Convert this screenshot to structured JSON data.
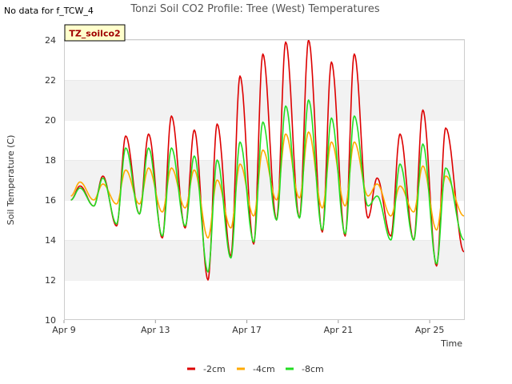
{
  "header": {
    "title": "Tonzi Soil CO2 Profile: Tree (West) Temperatures",
    "no_data": "No data for f_TCW_4",
    "badge": "TZ_soilco2"
  },
  "chart_data": {
    "type": "line",
    "title": "Tonzi Soil CO2 Profile: Tree (West) Temperatures",
    "xlabel": "Time",
    "ylabel": "Soil Temperature (C)",
    "xlim": [
      9,
      26.5
    ],
    "ylim": [
      10,
      24
    ],
    "x_ticks": [
      {
        "value": 9,
        "label": "Apr 9"
      },
      {
        "value": 13,
        "label": "Apr 13"
      },
      {
        "value": 17,
        "label": "Apr 17"
      },
      {
        "value": 21,
        "label": "Apr 21"
      },
      {
        "value": 25,
        "label": "Apr 25"
      }
    ],
    "y_ticks": [
      10,
      12,
      14,
      16,
      18,
      20,
      22,
      24
    ],
    "grid": "horizontal bands",
    "legend_position": "bottom",
    "series": [
      {
        "name": "-2cm",
        "color": "#dd0000",
        "daily": [
          {
            "day": 9,
            "min": 16.0,
            "max": 16.7
          },
          {
            "day": 10,
            "min": 15.7,
            "max": 17.2
          },
          {
            "day": 11,
            "min": 14.7,
            "max": 19.2
          },
          {
            "day": 12,
            "min": 15.3,
            "max": 19.3
          },
          {
            "day": 13,
            "min": 14.1,
            "max": 20.2
          },
          {
            "day": 14,
            "min": 14.6,
            "max": 19.5
          },
          {
            "day": 15,
            "min": 12.0,
            "max": 19.8
          },
          {
            "day": 16,
            "min": 13.2,
            "max": 22.2
          },
          {
            "day": 17,
            "min": 13.8,
            "max": 23.3
          },
          {
            "day": 18,
            "min": 15.0,
            "max": 23.9
          },
          {
            "day": 19,
            "min": 15.1,
            "max": 24.0
          },
          {
            "day": 20,
            "min": 14.4,
            "max": 22.9
          },
          {
            "day": 21,
            "min": 14.2,
            "max": 23.3
          },
          {
            "day": 22,
            "min": 15.1,
            "max": 17.1
          },
          {
            "day": 23,
            "min": 14.2,
            "max": 19.3
          },
          {
            "day": 24,
            "min": 14.0,
            "max": 20.5
          },
          {
            "day": 25,
            "min": 12.7,
            "max": 19.6
          }
        ],
        "end": {
          "day": 26.5,
          "value": 13.4
        }
      },
      {
        "name": "-4cm",
        "color": "#ffaa00",
        "daily": [
          {
            "day": 9,
            "min": 16.2,
            "max": 16.9
          },
          {
            "day": 10,
            "min": 16.0,
            "max": 16.8
          },
          {
            "day": 11,
            "min": 15.8,
            "max": 17.5
          },
          {
            "day": 12,
            "min": 15.8,
            "max": 17.6
          },
          {
            "day": 13,
            "min": 15.4,
            "max": 17.6
          },
          {
            "day": 14,
            "min": 15.6,
            "max": 17.5
          },
          {
            "day": 15,
            "min": 14.1,
            "max": 17.0
          },
          {
            "day": 16,
            "min": 14.6,
            "max": 17.8
          },
          {
            "day": 17,
            "min": 15.2,
            "max": 18.5
          },
          {
            "day": 18,
            "min": 16.0,
            "max": 19.3
          },
          {
            "day": 19,
            "min": 16.1,
            "max": 19.4
          },
          {
            "day": 20,
            "min": 15.6,
            "max": 18.9
          },
          {
            "day": 21,
            "min": 15.7,
            "max": 18.9
          },
          {
            "day": 22,
            "min": 16.2,
            "max": 16.8
          },
          {
            "day": 23,
            "min": 15.2,
            "max": 16.7
          },
          {
            "day": 24,
            "min": 15.4,
            "max": 17.7
          },
          {
            "day": 25,
            "min": 14.5,
            "max": 17.2
          }
        ],
        "end": {
          "day": 26.5,
          "value": 15.2
        }
      },
      {
        "name": "-8cm",
        "color": "#22dd22",
        "daily": [
          {
            "day": 9,
            "min": 16.0,
            "max": 16.6
          },
          {
            "day": 10,
            "min": 15.7,
            "max": 17.1
          },
          {
            "day": 11,
            "min": 14.8,
            "max": 18.6
          },
          {
            "day": 12,
            "min": 15.3,
            "max": 18.6
          },
          {
            "day": 13,
            "min": 14.2,
            "max": 18.6
          },
          {
            "day": 14,
            "min": 14.7,
            "max": 18.2
          },
          {
            "day": 15,
            "min": 12.4,
            "max": 18.0
          },
          {
            "day": 16,
            "min": 13.1,
            "max": 18.9
          },
          {
            "day": 17,
            "min": 13.9,
            "max": 19.9
          },
          {
            "day": 18,
            "min": 15.0,
            "max": 20.7
          },
          {
            "day": 19,
            "min": 15.1,
            "max": 21.0
          },
          {
            "day": 20,
            "min": 14.5,
            "max": 20.1
          },
          {
            "day": 21,
            "min": 14.3,
            "max": 20.2
          },
          {
            "day": 22,
            "min": 15.7,
            "max": 16.2
          },
          {
            "day": 23,
            "min": 14.0,
            "max": 17.8
          },
          {
            "day": 24,
            "min": 14.0,
            "max": 18.8
          },
          {
            "day": 25,
            "min": 12.8,
            "max": 17.6
          }
        ],
        "end": {
          "day": 26.5,
          "value": 14.0
        }
      }
    ]
  }
}
